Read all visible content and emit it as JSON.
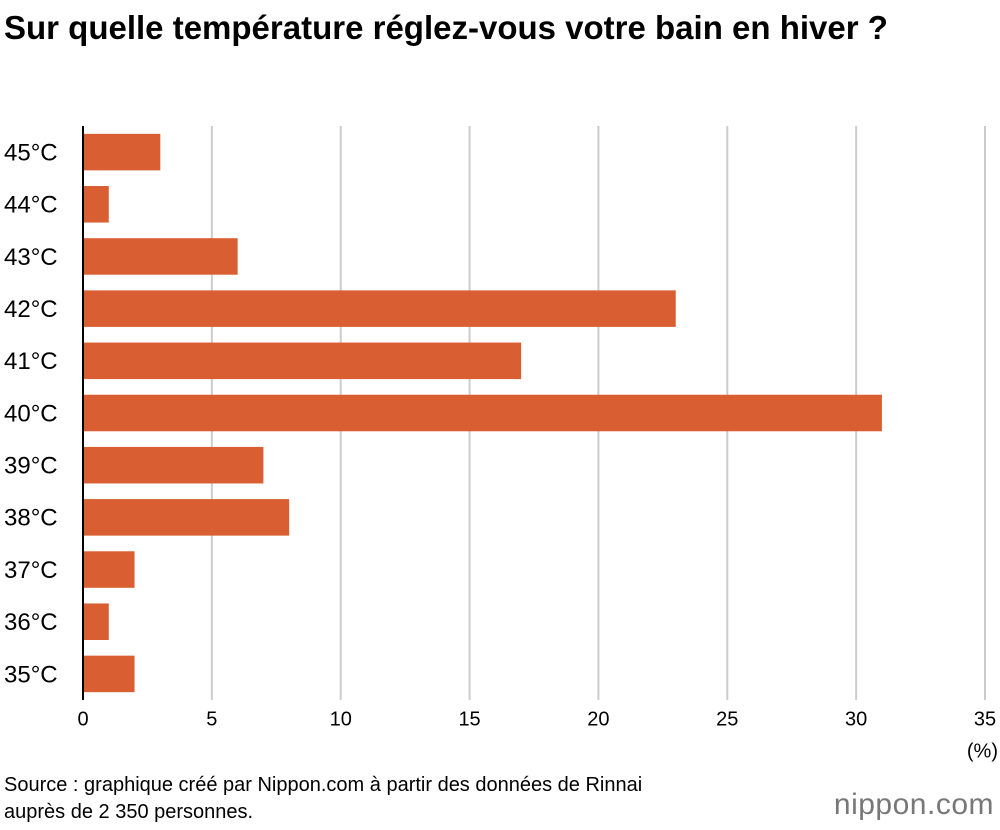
{
  "chart_data": {
    "type": "bar",
    "orientation": "horizontal",
    "title": "Sur quelle température réglez-vous votre bain en hiver ?",
    "categories": [
      "45°C",
      "44°C",
      "43°C",
      "42°C",
      "41°C",
      "40°C",
      "39°C",
      "38°C",
      "37°C",
      "36°C",
      "35°C"
    ],
    "values": [
      3,
      1,
      6,
      23,
      17,
      31,
      7,
      8,
      2,
      1,
      2
    ],
    "color": "#d95f32",
    "xlim": [
      0,
      35
    ],
    "xticks": [
      0,
      5,
      10,
      15,
      20,
      25,
      30,
      35
    ],
    "grid": true,
    "x_label": "(%)",
    "source": "Source : graphique créé par Nippon.com à partir des données de Rinnai auprès de 2 350 personnes.",
    "logo": "nippon.com"
  }
}
